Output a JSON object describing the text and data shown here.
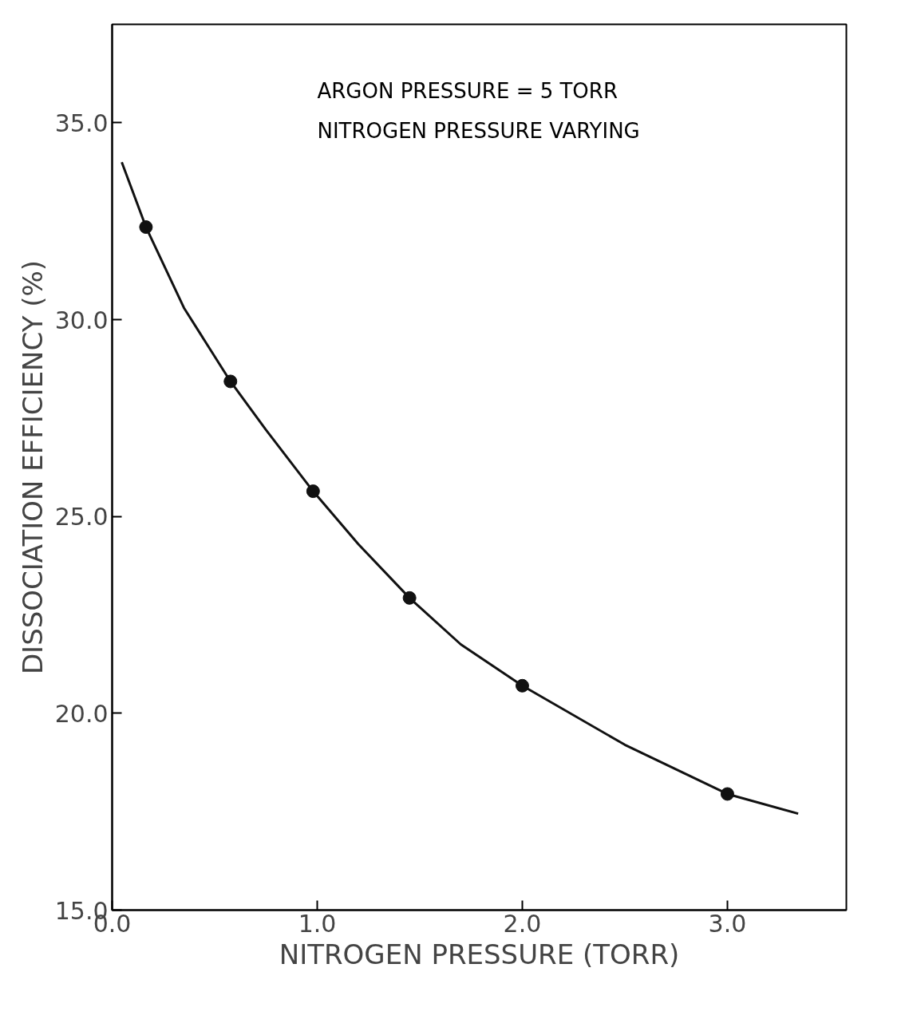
{
  "chart_data": {
    "type": "scatter",
    "xlabel": "NITROGEN PRESSURE (TORR)",
    "ylabel": "DISSOCIATION EFFICIENCY (%)",
    "annotations": [
      "ARGON PRESSURE = 5 TORR",
      "NITROGEN PRESSURE VARYING"
    ],
    "xlim": [
      0.0,
      3.58
    ],
    "ylim": [
      15.0,
      37.5
    ],
    "xticks": [
      {
        "value": 0,
        "label": "0.0"
      },
      {
        "value": 1,
        "label": "1.0"
      },
      {
        "value": 2,
        "label": "2.0"
      },
      {
        "value": 3,
        "label": "3.0"
      }
    ],
    "yticks": [
      {
        "value": 15,
        "label": "15.0"
      },
      {
        "value": 20,
        "label": "20.0"
      },
      {
        "value": 25,
        "label": "25.0"
      },
      {
        "value": 30,
        "label": "30.0"
      },
      {
        "value": 35,
        "label": "35.0"
      }
    ],
    "grid": false,
    "series": [
      {
        "marker": "circle",
        "color": "#111111",
        "x": [
          0.165,
          0.577,
          0.98,
          1.45,
          2.0,
          3.0
        ],
        "values": [
          32.35,
          28.43,
          25.64,
          22.93,
          20.7,
          17.95
        ]
      },
      {
        "type": "line",
        "color": "#111111",
        "marker": "none",
        "x": [
          0.047,
          0.165,
          0.35,
          0.577,
          0.75,
          0.98,
          1.2,
          1.45,
          1.7,
          2.0,
          2.5,
          3.0,
          3.345
        ],
        "values": [
          34.0,
          32.35,
          30.3,
          28.43,
          27.2,
          25.64,
          24.3,
          22.93,
          21.75,
          20.7,
          19.2,
          17.95,
          17.45
        ]
      }
    ]
  }
}
